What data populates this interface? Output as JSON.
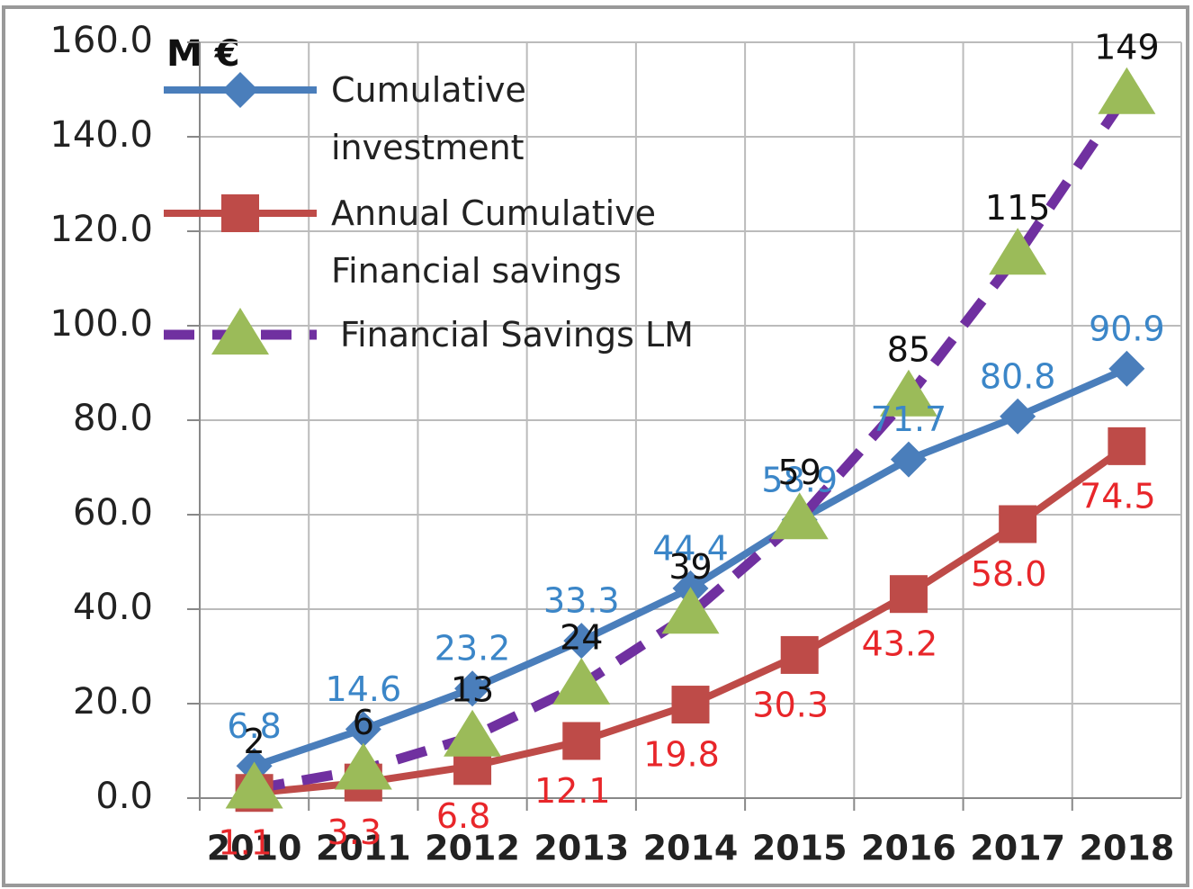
{
  "chart_data": {
    "type": "line",
    "unit_label": "M €",
    "categories": [
      "2010",
      "2011",
      "2012",
      "2013",
      "2014",
      "2015",
      "2016",
      "2017",
      "2018"
    ],
    "series": [
      {
        "name": "Cumulative investment",
        "color": "#4a7ebb",
        "label_color": "#3b86c8",
        "marker": "diamond",
        "dashed": false,
        "values": [
          6.8,
          14.6,
          23.2,
          33.3,
          44.4,
          58.9,
          71.7,
          80.8,
          90.9
        ]
      },
      {
        "name": "Annual  Cumulative Financial savings",
        "color": "#be4b48",
        "label_color": "#e8262a",
        "marker": "square",
        "dashed": false,
        "values": [
          1.1,
          3.3,
          6.8,
          12.1,
          19.8,
          30.3,
          43.2,
          58.0,
          74.5
        ],
        "value_labels": [
          "1.1",
          "3.3",
          "6.8",
          "12.1",
          "19.8",
          "30.3",
          "43.2",
          "58.0",
          "74.5"
        ]
      },
      {
        "name": "Financial Savings LM",
        "color": "#7030a0",
        "marker_color": "#9bbb59",
        "label_color": "#111111",
        "marker": "triangle",
        "dashed": true,
        "values": [
          2,
          6,
          13,
          24,
          39,
          59,
          85,
          115,
          149
        ]
      }
    ],
    "ylim": [
      0,
      160
    ],
    "yticks": [
      {
        "value": 0,
        "label": "0.0"
      },
      {
        "value": 20,
        "label": "20.0"
      },
      {
        "value": 40,
        "label": "40.0"
      },
      {
        "value": 60,
        "label": "60.0"
      },
      {
        "value": 80,
        "label": "80.0"
      },
      {
        "value": 100,
        "label": "100.0"
      },
      {
        "value": 120,
        "label": "120.0"
      },
      {
        "value": 140,
        "label": "140.0"
      },
      {
        "value": 160,
        "label": "160.0"
      }
    ],
    "grid": true,
    "legend": "upper left"
  }
}
